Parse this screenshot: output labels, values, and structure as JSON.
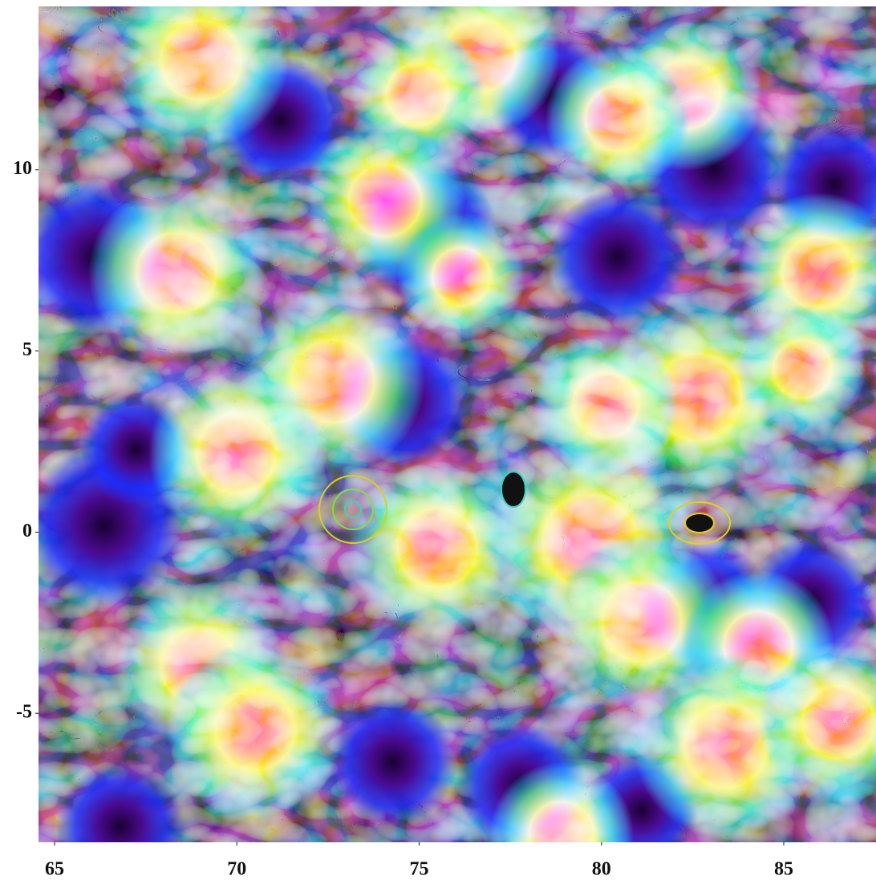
{
  "chart_data": {
    "type": "streamline",
    "xlim": [
      64.56,
      87.53
    ],
    "ylim": [
      -8.56,
      14.51
    ],
    "xticks": [
      65,
      70,
      75,
      80,
      85
    ],
    "yticks": [
      -5,
      0,
      5,
      10
    ],
    "grid": false
  }
}
